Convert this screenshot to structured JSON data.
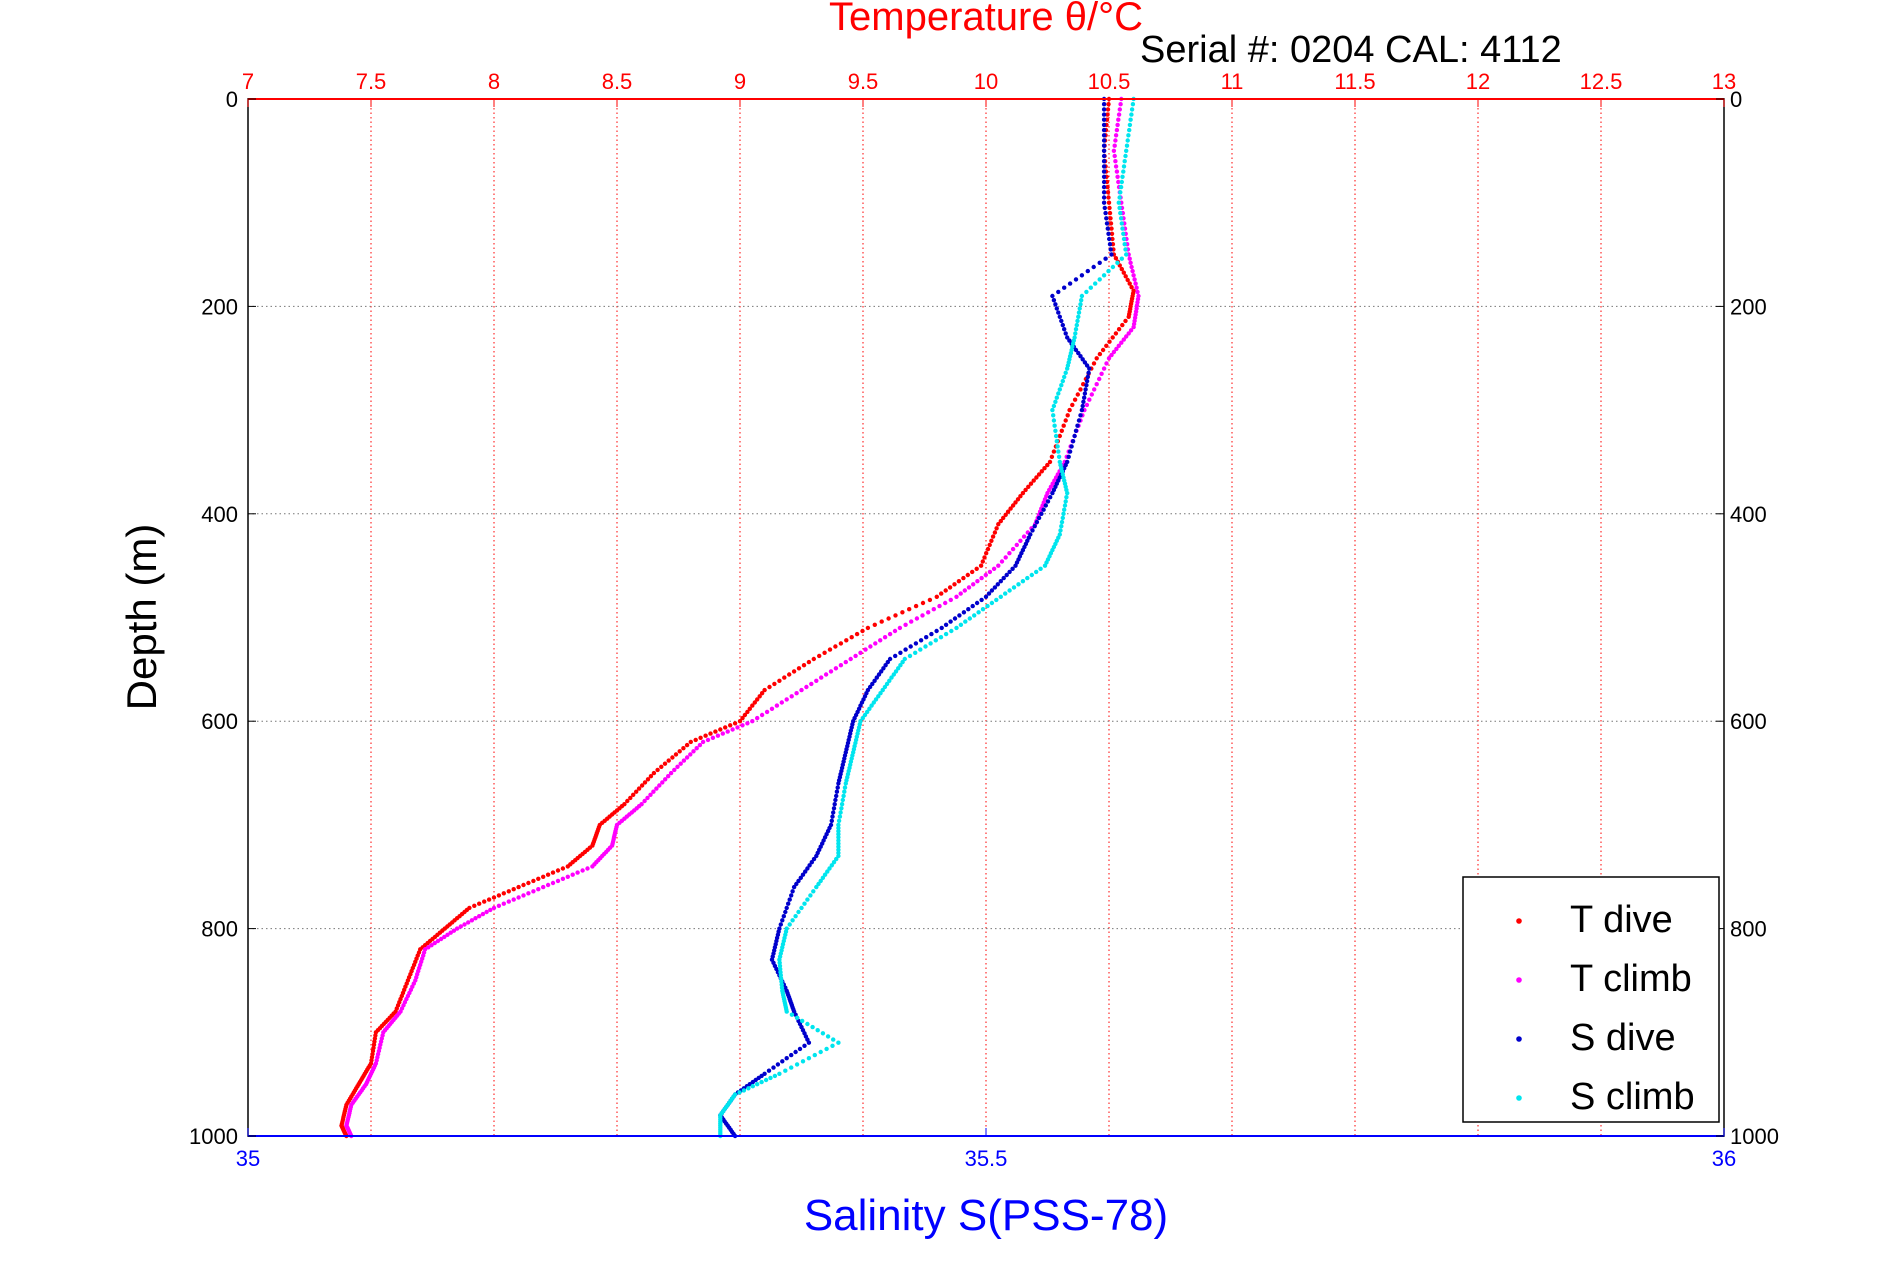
{
  "header": {
    "top_axis_label": "Temperature θ/°C",
    "serial_text": "Serial #: 0204  CAL: 4112"
  },
  "colors": {
    "t_dive": "#ff0000",
    "t_climb": "#ff00ff",
    "s_dive": "#0000cc",
    "s_climb": "#00e5ee",
    "top_axis": "#ff0000",
    "bottom_axis": "#0000ff",
    "grid": "#777777",
    "top_grid": "#ff0000"
  },
  "chart_data": {
    "type": "scatter",
    "ylabel": "Depth (m)",
    "xlabel": "Salinity S(PSS-78)",
    "x_top_label": "Temperature θ/°C",
    "y_reversed": true,
    "ylim": [
      0,
      1000
    ],
    "x_top_lim": [
      7,
      13
    ],
    "x_bottom_lim": [
      35,
      36
    ],
    "y_ticks": [
      "0",
      "200",
      "400",
      "600",
      "800",
      "1000"
    ],
    "x_top_ticks": [
      "7",
      "7.5",
      "8",
      "8.5",
      "9",
      "9.5",
      "10",
      "10.5",
      "11",
      "11.5",
      "12",
      "12.5",
      "13"
    ],
    "x_bottom_ticks": [
      "35",
      "35.5",
      "36"
    ],
    "grid": true,
    "legend_position": "bottom-right",
    "series": [
      {
        "name": "T dive",
        "axis": "temperature",
        "points": [
          [
            10.5,
            0
          ],
          [
            10.48,
            50
          ],
          [
            10.5,
            100
          ],
          [
            10.52,
            150
          ],
          [
            10.6,
            185
          ],
          [
            10.58,
            210
          ],
          [
            10.45,
            250
          ],
          [
            10.34,
            300
          ],
          [
            10.26,
            350
          ],
          [
            10.15,
            380
          ],
          [
            10.05,
            410
          ],
          [
            9.98,
            450
          ],
          [
            9.8,
            480
          ],
          [
            9.52,
            510
          ],
          [
            9.3,
            540
          ],
          [
            9.1,
            570
          ],
          [
            9.0,
            600
          ],
          [
            8.8,
            620
          ],
          [
            8.65,
            650
          ],
          [
            8.53,
            680
          ],
          [
            8.43,
            700
          ],
          [
            8.4,
            720
          ],
          [
            8.3,
            740
          ],
          [
            8.1,
            760
          ],
          [
            7.9,
            780
          ],
          [
            7.8,
            800
          ],
          [
            7.7,
            820
          ],
          [
            7.65,
            850
          ],
          [
            7.6,
            880
          ],
          [
            7.52,
            900
          ],
          [
            7.5,
            930
          ],
          [
            7.45,
            950
          ],
          [
            7.4,
            970
          ],
          [
            7.38,
            990
          ],
          [
            7.4,
            1000
          ]
        ]
      },
      {
        "name": "T climb",
        "axis": "temperature",
        "points": [
          [
            10.55,
            0
          ],
          [
            10.52,
            50
          ],
          [
            10.55,
            100
          ],
          [
            10.58,
            150
          ],
          [
            10.62,
            190
          ],
          [
            10.6,
            220
          ],
          [
            10.5,
            250
          ],
          [
            10.4,
            300
          ],
          [
            10.32,
            350
          ],
          [
            10.25,
            380
          ],
          [
            10.2,
            410
          ],
          [
            10.05,
            450
          ],
          [
            9.88,
            480
          ],
          [
            9.65,
            510
          ],
          [
            9.45,
            540
          ],
          [
            9.25,
            570
          ],
          [
            9.05,
            600
          ],
          [
            8.85,
            620
          ],
          [
            8.72,
            650
          ],
          [
            8.6,
            680
          ],
          [
            8.5,
            700
          ],
          [
            8.48,
            720
          ],
          [
            8.4,
            740
          ],
          [
            8.2,
            760
          ],
          [
            8.0,
            780
          ],
          [
            7.85,
            800
          ],
          [
            7.72,
            820
          ],
          [
            7.68,
            850
          ],
          [
            7.62,
            880
          ],
          [
            7.55,
            900
          ],
          [
            7.52,
            930
          ],
          [
            7.48,
            950
          ],
          [
            7.42,
            970
          ],
          [
            7.4,
            990
          ],
          [
            7.42,
            1000
          ]
        ]
      },
      {
        "name": "S dive",
        "axis": "salinity",
        "points": [
          [
            35.58,
            0
          ],
          [
            35.58,
            50
          ],
          [
            35.58,
            100
          ],
          [
            35.585,
            150
          ],
          [
            35.545,
            190
          ],
          [
            35.555,
            230
          ],
          [
            35.57,
            260
          ],
          [
            35.565,
            300
          ],
          [
            35.555,
            350
          ],
          [
            35.545,
            380
          ],
          [
            35.53,
            420
          ],
          [
            35.52,
            450
          ],
          [
            35.5,
            480
          ],
          [
            35.47,
            510
          ],
          [
            35.435,
            540
          ],
          [
            35.42,
            570
          ],
          [
            35.41,
            600
          ],
          [
            35.405,
            630
          ],
          [
            35.4,
            660
          ],
          [
            35.395,
            700
          ],
          [
            35.385,
            730
          ],
          [
            35.37,
            760
          ],
          [
            35.36,
            800
          ],
          [
            35.355,
            830
          ],
          [
            35.365,
            860
          ],
          [
            35.37,
            880
          ],
          [
            35.38,
            910
          ],
          [
            35.35,
            940
          ],
          [
            35.33,
            960
          ],
          [
            35.32,
            980
          ],
          [
            35.33,
            1000
          ]
        ]
      },
      {
        "name": "S climb",
        "axis": "salinity",
        "points": [
          [
            35.6,
            0
          ],
          [
            35.595,
            50
          ],
          [
            35.59,
            100
          ],
          [
            35.595,
            150
          ],
          [
            35.565,
            190
          ],
          [
            35.56,
            230
          ],
          [
            35.555,
            260
          ],
          [
            35.545,
            300
          ],
          [
            35.55,
            350
          ],
          [
            35.555,
            380
          ],
          [
            35.55,
            420
          ],
          [
            35.54,
            450
          ],
          [
            35.51,
            480
          ],
          [
            35.48,
            510
          ],
          [
            35.445,
            540
          ],
          [
            35.43,
            570
          ],
          [
            35.415,
            600
          ],
          [
            35.41,
            630
          ],
          [
            35.405,
            660
          ],
          [
            35.4,
            700
          ],
          [
            35.4,
            730
          ],
          [
            35.385,
            760
          ],
          [
            35.365,
            800
          ],
          [
            35.36,
            830
          ],
          [
            35.362,
            860
          ],
          [
            35.365,
            880
          ],
          [
            35.4,
            910
          ],
          [
            35.36,
            940
          ],
          [
            35.33,
            960
          ],
          [
            35.32,
            980
          ],
          [
            35.32,
            1000
          ]
        ]
      }
    ]
  }
}
